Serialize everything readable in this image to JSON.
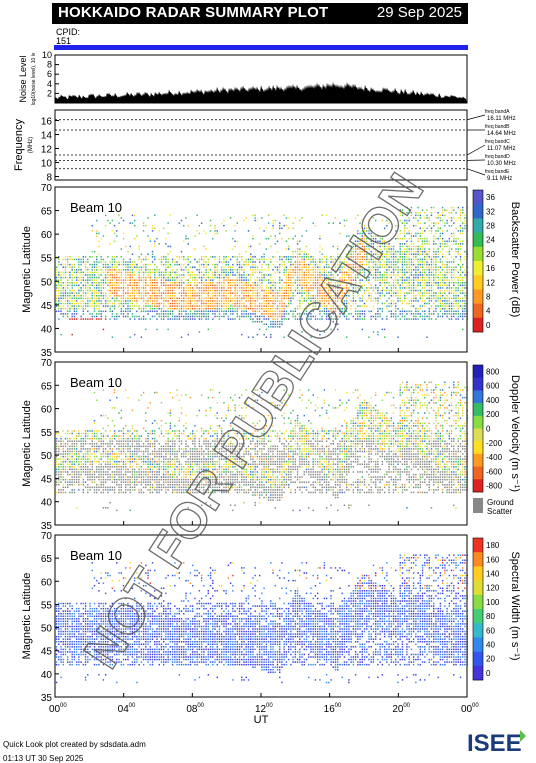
{
  "header": {
    "title": "HOKKAIDO RADAR SUMMARY PLOT",
    "date": "29 Sep 2025",
    "cpid_label": "CPID:",
    "cpid_value": "151"
  },
  "colors": {
    "title_bg": "#000000",
    "cpid_bar": "#2222ee",
    "ground_scatter": "#888888",
    "noise_fill": "#000000"
  },
  "footer": {
    "line1": "Quick Look plot created by sdsdata.adm",
    "line2": "01:13 UT 30 Sep 2025",
    "logo_text": "ISEE"
  },
  "watermark": "NOT FOR PUBLICATION",
  "chart_data": [
    {
      "type": "area",
      "ylabel": "Noise Level",
      "ylabel_sub": "log10(noise level), 10 lv",
      "y_ticks": [
        "2",
        "4",
        "6",
        "8",
        "10"
      ],
      "ylim": [
        0,
        10
      ],
      "x_range_hours": [
        0,
        24
      ],
      "values": [
        1.2,
        1.3,
        1.5,
        1.6,
        1.7,
        1.8,
        1.9,
        2.0,
        2.2,
        2.4,
        2.5,
        2.6,
        2.8,
        3.0,
        3.1,
        3.2,
        3.3,
        3.5,
        3.4,
        3.6,
        3.8,
        4.2,
        3.9,
        3.5,
        3.2,
        3.0,
        2.6,
        2.3,
        2.0,
        1.8,
        1.5,
        1.2
      ]
    },
    {
      "type": "line",
      "ylabel": "Frequency",
      "yunit": "(MHz)",
      "y_ticks": [
        "8",
        "10",
        "12",
        "14",
        "16"
      ],
      "ylim": [
        7.5,
        17.5
      ],
      "series": [
        {
          "name": "freq bandA",
          "label": "16.11 MHz",
          "value": 16.11
        },
        {
          "name": "freq bandB",
          "label": "14.64 MHz",
          "value": 14.64
        },
        {
          "name": "freq bandC",
          "label": "11.07 MHz",
          "value": 11.07
        },
        {
          "name": "freq bandD",
          "label": "10.30 MHz",
          "value": 10.3
        },
        {
          "name": "freq bandE",
          "label": "9.11 MHz",
          "value": 9.11
        }
      ]
    },
    {
      "type": "heatmap",
      "beam_label": "Beam 10",
      "ylabel": "Magnetic Latitude",
      "y_ticks": [
        "35",
        "40",
        "45",
        "50",
        "55",
        "60",
        "65",
        "70"
      ],
      "ylim": [
        35,
        70
      ],
      "colorbar_label": "Backscatter Power (dB)",
      "colorbar_ticks": [
        "0",
        "4",
        "8",
        "12",
        "16",
        "20",
        "24",
        "28",
        "32",
        "36"
      ],
      "zlim": [
        0,
        36
      ]
    },
    {
      "type": "heatmap",
      "beam_label": "Beam 10",
      "ylabel": "Magnetic Latitude",
      "y_ticks": [
        "35",
        "40",
        "45",
        "50",
        "55",
        "60",
        "65",
        "70"
      ],
      "ylim": [
        35,
        70
      ],
      "colorbar_label": "Doppler Velocity (m s⁻¹)",
      "colorbar_ticks": [
        "-800",
        "-600",
        "-400",
        "-200",
        "0",
        "200",
        "400",
        "600",
        "800"
      ],
      "zlim": [
        -800,
        800
      ],
      "ground_label": "Ground",
      "ground_label2": "Scatter"
    },
    {
      "type": "heatmap",
      "beam_label": "Beam 10",
      "ylabel": "Magnetic Latitude",
      "y_ticks": [
        "35",
        "40",
        "45",
        "50",
        "55",
        "60",
        "65",
        "70"
      ],
      "ylim": [
        35,
        70
      ],
      "colorbar_label": "Spectral Width (m s⁻¹)",
      "colorbar_ticks": [
        "0",
        "20",
        "40",
        "60",
        "80",
        "100",
        "120",
        "140",
        "160",
        "180"
      ],
      "zlim": [
        0,
        180
      ]
    }
  ],
  "x_axis": {
    "ticks": [
      "00",
      "04",
      "08",
      "12",
      "16",
      "20",
      "00"
    ],
    "tick_sup": "00",
    "label": "UT"
  }
}
